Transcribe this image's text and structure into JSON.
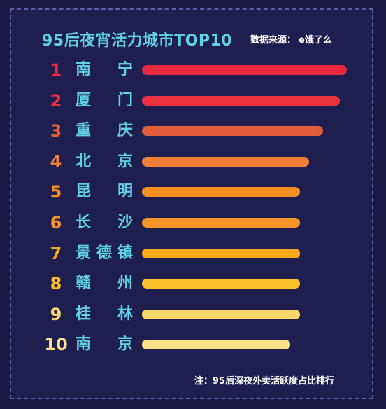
{
  "chart_data": {
    "type": "bar",
    "orientation": "horizontal",
    "title": "95后夜宵活力城市TOP10",
    "source": "数据来源：",
    "source_brand": "e饿了么",
    "note": "注：95后深夜外卖活跃度占比排行",
    "xlim": [
      0,
      100
    ],
    "ranks": [
      "1",
      "2",
      "3",
      "4",
      "5",
      "6",
      "7",
      "8",
      "9",
      "10"
    ],
    "categories": [
      "南宁",
      "厦门",
      "重庆",
      "北京",
      "昆明",
      "长沙",
      "景德镇",
      "赣州",
      "桂林",
      "南京"
    ],
    "values": [
      100,
      96.5,
      88.5,
      81.5,
      77,
      77,
      77,
      77,
      77,
      72.5
    ],
    "colors": [
      "#e8283f",
      "#ea3140",
      "#e35d3a",
      "#f0813a",
      "#f68f23",
      "#f7952a",
      "#f9a91c",
      "#fbc02a",
      "#fcd86a",
      "#fde08a"
    ]
  }
}
